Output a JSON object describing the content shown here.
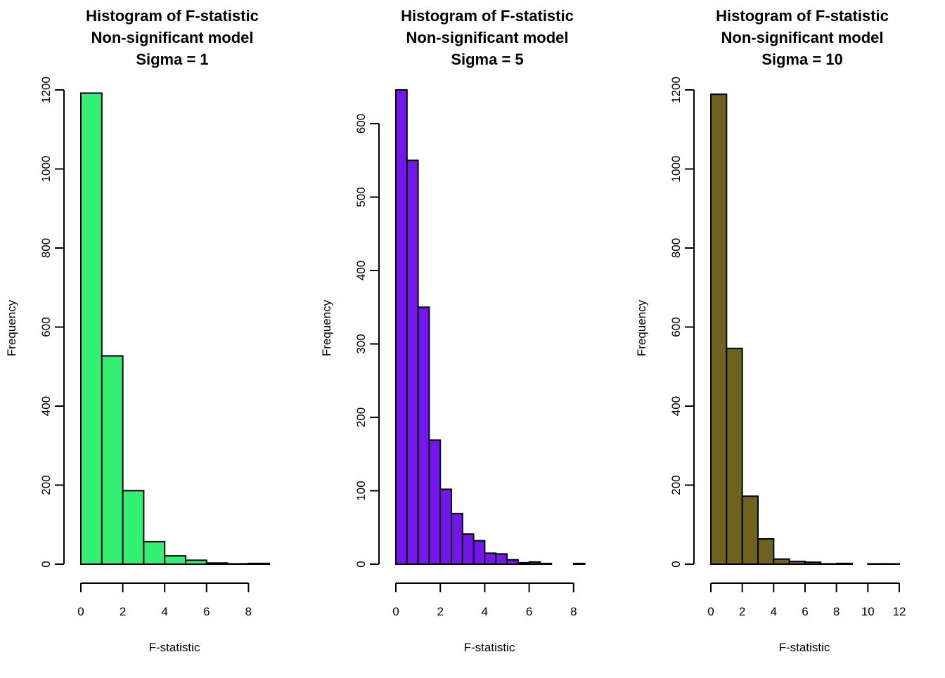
{
  "chart_data": [
    {
      "type": "bar",
      "title_lines": [
        "Histogram of F-statistic",
        "Non-significant model",
        "Sigma = 1"
      ],
      "xlabel": "F-statistic",
      "ylabel": "Frequency",
      "bar_color": "#33f075",
      "bin_width": 1,
      "bin_start": 0,
      "values": [
        1192,
        527,
        186,
        57,
        21,
        10,
        3,
        1,
        2
      ],
      "xticks": [
        0,
        2,
        4,
        6,
        8
      ],
      "yticks": [
        0,
        200,
        400,
        600,
        800,
        1000,
        1200
      ],
      "xlim": [
        0,
        9
      ],
      "ylim": [
        0,
        1200
      ]
    },
    {
      "type": "bar",
      "title_lines": [
        "Histogram of F-statistic",
        "Non-significant model",
        "Sigma = 5"
      ],
      "xlabel": "F-statistic",
      "ylabel": "Frequency",
      "bar_color": "#7417ec",
      "bin_width": 0.5,
      "bin_start": 0,
      "values": [
        646,
        550,
        350,
        169,
        102,
        69,
        41,
        32,
        15,
        14,
        6,
        2,
        3,
        1,
        0,
        0,
        1
      ],
      "xticks": [
        0,
        2,
        4,
        6,
        8
      ],
      "yticks": [
        0,
        100,
        200,
        300,
        400,
        500,
        600
      ],
      "xlim": [
        0,
        8.5
      ],
      "ylim": [
        0,
        600
      ]
    },
    {
      "type": "bar",
      "title_lines": [
        "Histogram of F-statistic",
        "Non-significant model",
        "Sigma = 10"
      ],
      "xlabel": "F-statistic",
      "ylabel": "Frequency",
      "bar_color": "#6e6221",
      "bin_width": 1,
      "bin_start": 0,
      "values": [
        1189,
        546,
        172,
        64,
        13,
        7,
        5,
        1,
        2,
        0,
        1,
        1
      ],
      "xticks": [
        0,
        2,
        4,
        6,
        8,
        10,
        12
      ],
      "yticks": [
        0,
        200,
        400,
        600,
        800,
        1000,
        1200
      ],
      "xlim": [
        0,
        12
      ],
      "ylim": [
        0,
        1200
      ]
    }
  ]
}
